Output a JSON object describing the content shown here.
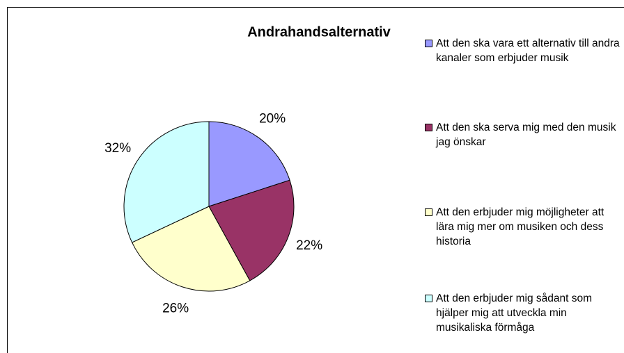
{
  "chart_data": {
    "type": "pie",
    "title": "Andrahandsalternativ",
    "categories": [
      "Att den ska vara ett alternativ till andra kanaler som erbjuder musik",
      "Att den ska serva mig med den musik jag önskar",
      "Att den erbjuder mig möjligheter att lära mig mer om musiken och dess historia",
      "Att den erbjuder mig sådant som hjälper mig att utveckla min musikaliska förmåga"
    ],
    "values": [
      20,
      22,
      26,
      32
    ],
    "value_labels": [
      "20%",
      "22%",
      "26%",
      "32%"
    ],
    "colors": [
      "#9999ff",
      "#993366",
      "#ffffcc",
      "#ccffff"
    ],
    "legend": "right"
  }
}
